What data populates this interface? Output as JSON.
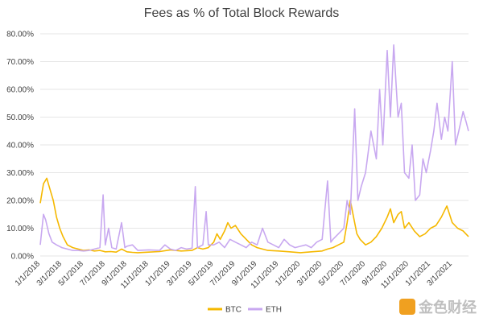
{
  "chart_data": {
    "type": "line",
    "title": "Fees as % of Total Block Rewards",
    "xlabel": "",
    "ylabel": "",
    "ylim": [
      0,
      80
    ],
    "y_ticks": [
      "0.00%",
      "10.00%",
      "20.00%",
      "30.00%",
      "40.00%",
      "50.00%",
      "60.00%",
      "70.00%",
      "80.00%"
    ],
    "x_ticks": [
      "1/1/2018",
      "3/1/2018",
      "5/1/2018",
      "7/1/2018",
      "9/1/2018",
      "11/1/2018",
      "1/1/2019",
      "3/1/2019",
      "5/1/2019",
      "7/1/2019",
      "9/1/2019",
      "11/1/2019",
      "1/1/2020",
      "3/1/2020",
      "5/1/2020",
      "7/1/2020",
      "9/1/2020",
      "11/1/2020",
      "1/1/2021",
      "3/1/2021"
    ],
    "x_range_months": [
      0,
      39.5
    ],
    "legend_position": "bottom",
    "series": [
      {
        "name": "BTC",
        "color": "#f5b800",
        "points": [
          [
            0,
            19
          ],
          [
            0.3,
            26
          ],
          [
            0.6,
            28
          ],
          [
            0.9,
            24
          ],
          [
            1.2,
            20
          ],
          [
            1.5,
            14
          ],
          [
            1.8,
            10
          ],
          [
            2.1,
            7
          ],
          [
            2.5,
            4
          ],
          [
            3,
            3
          ],
          [
            3.5,
            2.5
          ],
          [
            4,
            2
          ],
          [
            4.5,
            2.2
          ],
          [
            5,
            1.8
          ],
          [
            5.5,
            2
          ],
          [
            6,
            1.5
          ],
          [
            6.5,
            1.6
          ],
          [
            7,
            1.4
          ],
          [
            7.5,
            2.5
          ],
          [
            8,
            1.5
          ],
          [
            8.5,
            1.3
          ],
          [
            9,
            1.2
          ],
          [
            10,
            1.4
          ],
          [
            11,
            1.6
          ],
          [
            12,
            2.2
          ],
          [
            13,
            1.8
          ],
          [
            14,
            2
          ],
          [
            14.5,
            3
          ],
          [
            15,
            2.5
          ],
          [
            15.5,
            3
          ],
          [
            16,
            5
          ],
          [
            16.3,
            8
          ],
          [
            16.6,
            6
          ],
          [
            17,
            9
          ],
          [
            17.3,
            12
          ],
          [
            17.6,
            10
          ],
          [
            18,
            11
          ],
          [
            18.5,
            8
          ],
          [
            19,
            6
          ],
          [
            19.5,
            4
          ],
          [
            20,
            3
          ],
          [
            20.5,
            2.5
          ],
          [
            21,
            2
          ],
          [
            22,
            1.8
          ],
          [
            23,
            1.5
          ],
          [
            24,
            1.2
          ],
          [
            25,
            1.5
          ],
          [
            26,
            1.8
          ],
          [
            26.5,
            2.5
          ],
          [
            27,
            3
          ],
          [
            27.5,
            4
          ],
          [
            28,
            5
          ],
          [
            28.3,
            12
          ],
          [
            28.6,
            20
          ],
          [
            28.9,
            14
          ],
          [
            29.2,
            8
          ],
          [
            29.5,
            6
          ],
          [
            30,
            4
          ],
          [
            30.5,
            5
          ],
          [
            31,
            7
          ],
          [
            31.5,
            10
          ],
          [
            32,
            14
          ],
          [
            32.3,
            17
          ],
          [
            32.6,
            12
          ],
          [
            33,
            15
          ],
          [
            33.3,
            16
          ],
          [
            33.6,
            10
          ],
          [
            34,
            12
          ],
          [
            34.5,
            9
          ],
          [
            35,
            7
          ],
          [
            35.5,
            8
          ],
          [
            36,
            10
          ],
          [
            36.5,
            11
          ],
          [
            37,
            14
          ],
          [
            37.5,
            18
          ],
          [
            38,
            12
          ],
          [
            38.5,
            10
          ],
          [
            39,
            9
          ],
          [
            39.5,
            7
          ]
        ]
      },
      {
        "name": "ETH",
        "color": "#c8a8f0",
        "points": [
          [
            0,
            4
          ],
          [
            0.3,
            15
          ],
          [
            0.5,
            13
          ],
          [
            0.8,
            8
          ],
          [
            1.1,
            5
          ],
          [
            1.5,
            4
          ],
          [
            2,
            3
          ],
          [
            2.5,
            2.5
          ],
          [
            3,
            2
          ],
          [
            3.5,
            2
          ],
          [
            4,
            1.8
          ],
          [
            4.5,
            2
          ],
          [
            5,
            2.5
          ],
          [
            5.5,
            3
          ],
          [
            5.8,
            22
          ],
          [
            6,
            4
          ],
          [
            6.3,
            10
          ],
          [
            6.6,
            3
          ],
          [
            7,
            2.5
          ],
          [
            7.5,
            12
          ],
          [
            7.8,
            3
          ],
          [
            8,
            3.5
          ],
          [
            8.5,
            4
          ],
          [
            9,
            2
          ],
          [
            10,
            2.2
          ],
          [
            11,
            2
          ],
          [
            11.5,
            4
          ],
          [
            12,
            2.5
          ],
          [
            12.5,
            2
          ],
          [
            13,
            3
          ],
          [
            13.5,
            2.5
          ],
          [
            14,
            2.8
          ],
          [
            14.3,
            25
          ],
          [
            14.5,
            3
          ],
          [
            15,
            4
          ],
          [
            15.3,
            16
          ],
          [
            15.5,
            4
          ],
          [
            16,
            4
          ],
          [
            16.5,
            5
          ],
          [
            17,
            3
          ],
          [
            17.5,
            6
          ],
          [
            18,
            5
          ],
          [
            18.5,
            4
          ],
          [
            19,
            3
          ],
          [
            19.5,
            5
          ],
          [
            20,
            4
          ],
          [
            20.5,
            10
          ],
          [
            21,
            5
          ],
          [
            21.5,
            4
          ],
          [
            22,
            3
          ],
          [
            22.5,
            6
          ],
          [
            23,
            4
          ],
          [
            23.5,
            3
          ],
          [
            24,
            3.5
          ],
          [
            24.5,
            4
          ],
          [
            25,
            3
          ],
          [
            25.5,
            5
          ],
          [
            26,
            6
          ],
          [
            26.5,
            27
          ],
          [
            26.8,
            5
          ],
          [
            27,
            6
          ],
          [
            27.5,
            8
          ],
          [
            28,
            10
          ],
          [
            28.3,
            20
          ],
          [
            28.6,
            15
          ],
          [
            29,
            53
          ],
          [
            29.3,
            20
          ],
          [
            29.6,
            25
          ],
          [
            30,
            30
          ],
          [
            30.5,
            45
          ],
          [
            31,
            35
          ],
          [
            31.3,
            60
          ],
          [
            31.6,
            40
          ],
          [
            32,
            74
          ],
          [
            32.3,
            50
          ],
          [
            32.6,
            76
          ],
          [
            33,
            50
          ],
          [
            33.3,
            55
          ],
          [
            33.6,
            30
          ],
          [
            34,
            28
          ],
          [
            34.3,
            40
          ],
          [
            34.6,
            20
          ],
          [
            35,
            22
          ],
          [
            35.3,
            35
          ],
          [
            35.6,
            30
          ],
          [
            36,
            38
          ],
          [
            36.3,
            45
          ],
          [
            36.6,
            55
          ],
          [
            37,
            42
          ],
          [
            37.3,
            50
          ],
          [
            37.6,
            45
          ],
          [
            38,
            70
          ],
          [
            38.3,
            40
          ],
          [
            38.6,
            45
          ],
          [
            39,
            52
          ],
          [
            39.3,
            48
          ],
          [
            39.5,
            45
          ]
        ]
      }
    ]
  },
  "watermark": {
    "text": "金色财经"
  }
}
